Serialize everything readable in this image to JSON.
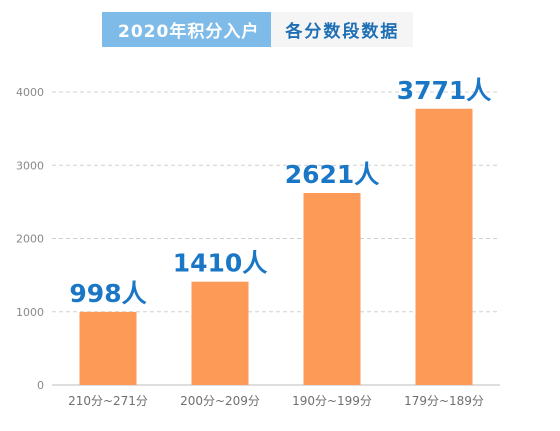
{
  "title": {
    "main": "2020年积分入户",
    "sub": "各分数段数据"
  },
  "colors": {
    "bar": "#fd9a58",
    "title_bg": "#7fbbe8",
    "title_sub_bg": "#f5f5f5",
    "title_sub_text": "#1e6fb5",
    "data_label": "#1a77c6",
    "grid": "#d0d0d0",
    "axis": "#bdbdbd"
  },
  "chart_data": {
    "type": "bar",
    "categories": [
      "210分~271分",
      "200分~209分",
      "190分~199分",
      "179分~189分"
    ],
    "values": [
      998,
      1410,
      2621,
      3771
    ],
    "data_labels": [
      "998人",
      "1410人",
      "2621人",
      "3771人"
    ],
    "title": "2020年积分入户 各分数段数据",
    "xlabel": "",
    "ylabel": "",
    "ylim": [
      0,
      4000
    ],
    "yticks": [
      0,
      1000,
      2000,
      3000,
      4000
    ],
    "grid": true,
    "grid_style": "dashed",
    "legend": "none"
  }
}
